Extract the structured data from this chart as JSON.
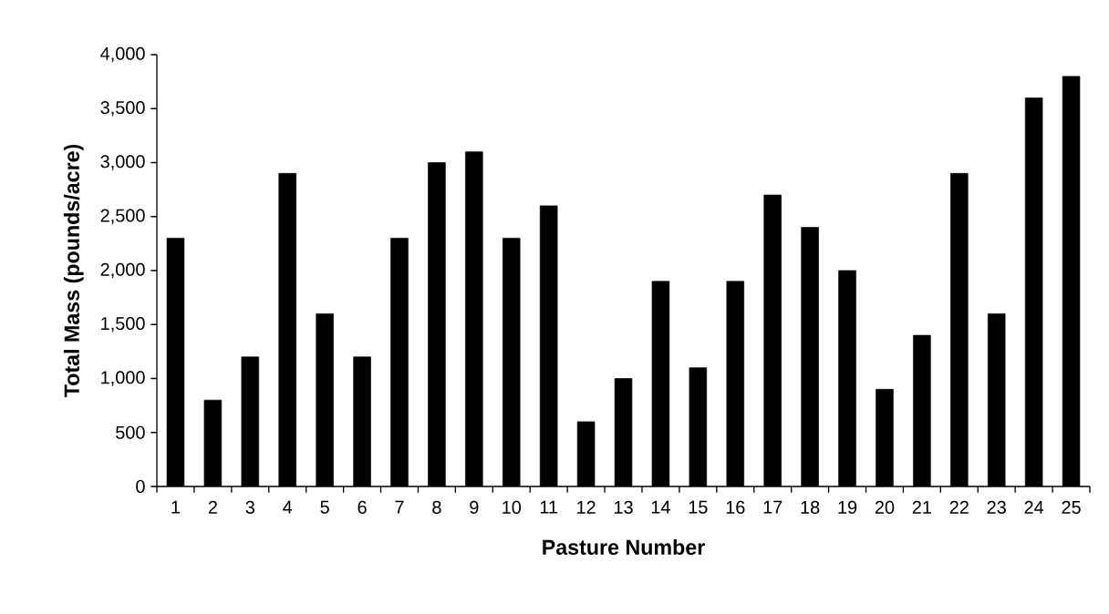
{
  "chart_data": {
    "type": "bar",
    "xlabel": "Pasture Number",
    "ylabel": "Total Mass  (pounds/acre)",
    "categories": [
      "1",
      "2",
      "3",
      "4",
      "5",
      "6",
      "7",
      "8",
      "9",
      "10",
      "11",
      "12",
      "13",
      "14",
      "15",
      "16",
      "17",
      "18",
      "19",
      "20",
      "21",
      "22",
      "23",
      "24",
      "25"
    ],
    "values": [
      2300,
      800,
      1200,
      2900,
      1600,
      1200,
      2300,
      3000,
      3100,
      2300,
      2600,
      600,
      1000,
      1900,
      1100,
      1900,
      2700,
      2400,
      2000,
      900,
      1400,
      2900,
      1600,
      3600,
      3800
    ],
    "color": "#000000",
    "ylim": [
      0,
      4000
    ],
    "yticks": [
      0,
      500,
      {
        "value": 1000,
        "label": "1,000"
      },
      {
        "value": 1500,
        "label": "1,500"
      },
      {
        "value": 2000,
        "label": "2,000"
      },
      {
        "value": 2500,
        "label": "2,500"
      },
      {
        "value": 3000,
        "label": "3,000"
      },
      {
        "value": 3500,
        "label": "3,500"
      },
      {
        "value": 4000,
        "label": "4,000"
      }
    ],
    "grid": false
  }
}
